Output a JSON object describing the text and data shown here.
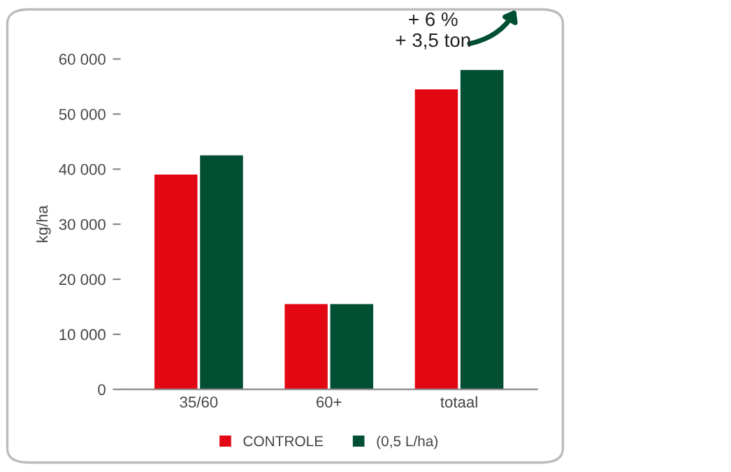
{
  "chart_data": {
    "type": "bar",
    "ylabel": "kg/ha",
    "categories": [
      "35/60",
      "60+",
      "totaal"
    ],
    "series": [
      {
        "name": "CONTROLE",
        "color": "#e30613",
        "values": [
          39000,
          15500,
          54500
        ]
      },
      {
        "name": "(0,5 L/ha)",
        "color": "#004f32",
        "values": [
          42500,
          15500,
          58000
        ]
      }
    ],
    "ylim": [
      0,
      60000
    ],
    "yticks": [
      {
        "value": 0,
        "label": "0"
      },
      {
        "value": 10000,
        "label": "10 000"
      },
      {
        "value": 20000,
        "label": "20 000"
      },
      {
        "value": 30000,
        "label": "30 000"
      },
      {
        "value": 40000,
        "label": "40 000"
      },
      {
        "value": 50000,
        "label": "50 000"
      },
      {
        "value": 60000,
        "label": "60 000"
      }
    ],
    "annotations": [
      {
        "text": "+ 6 %\n+ 3,5 ton",
        "x": "totaal",
        "y": 58000
      }
    ],
    "legend": "bottom",
    "grid": false
  }
}
